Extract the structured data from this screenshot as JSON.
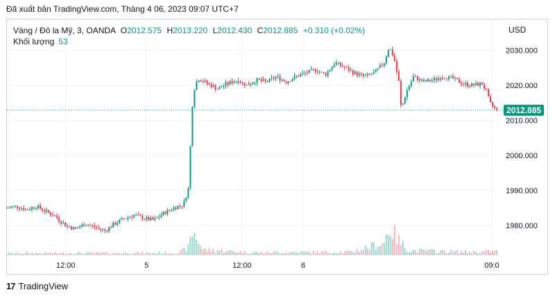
{
  "publish_line": "Đã xuất bản TradingView.com, Tháng 4 06, 2023 09:07 UTC+7",
  "legend": {
    "symbol": "Vàng / Đô la Mỹ, 3, OANDA",
    "o_label": "O",
    "o_value": "2012.575",
    "h_label": "H",
    "h_value": "2013.220",
    "l_label": "L",
    "l_value": "2012.430",
    "c_label": "C",
    "c_value": "2012.885",
    "change": "+0.310 (+0.02%)",
    "volume_label": "Khối lượng",
    "volume_value": "53"
  },
  "currency": "USD",
  "footer": {
    "brand": "TradingView",
    "logo_text": "17"
  },
  "colors": {
    "up": "#089981",
    "down": "#f23645",
    "last_price_bg": "#089981",
    "grid": "#f0f3fa",
    "text": "#131722"
  },
  "chart_data": {
    "type": "candlestick",
    "title": "Vàng / Đô la Mỹ, 3, OANDA",
    "ylabel": "USD",
    "ylim": [
      1972,
      2036
    ],
    "y_ticks": [
      "2030.000",
      "2020.000",
      "2010.000",
      "2000.000",
      "1990.000",
      "1980.000"
    ],
    "y_tick_values": [
      2030,
      2020,
      2010,
      2000,
      1990,
      1980
    ],
    "x_ticks": [
      "12:00",
      "5",
      "12:00",
      "6",
      "09:0"
    ],
    "last_price": "2012.885",
    "last_price_value": 2012.885,
    "price_path": [
      {
        "t": 0,
        "p": 1985.0
      },
      {
        "t": 4,
        "p": 1985.5
      },
      {
        "t": 8,
        "p": 1984.5
      },
      {
        "t": 12,
        "p": 1985.5
      },
      {
        "t": 16,
        "p": 1984.0
      },
      {
        "t": 20,
        "p": 1982.5
      },
      {
        "t": 24,
        "p": 1980.0
      },
      {
        "t": 28,
        "p": 1979.0
      },
      {
        "t": 32,
        "p": 1980.5
      },
      {
        "t": 36,
        "p": 1979.5
      },
      {
        "t": 40,
        "p": 1978.5
      },
      {
        "t": 44,
        "p": 1980.5
      },
      {
        "t": 48,
        "p": 1982.0
      },
      {
        "t": 52,
        "p": 1983.0
      },
      {
        "t": 56,
        "p": 1982.0
      },
      {
        "t": 60,
        "p": 1981.5
      },
      {
        "t": 64,
        "p": 1983.5
      },
      {
        "t": 68,
        "p": 1985.0
      },
      {
        "t": 72,
        "p": 1986.0
      },
      {
        "t": 74,
        "p": 1990.0
      },
      {
        "t": 75,
        "p": 2004.0
      },
      {
        "t": 76,
        "p": 2018.0
      },
      {
        "t": 78,
        "p": 2022.0
      },
      {
        "t": 82,
        "p": 2020.5
      },
      {
        "t": 86,
        "p": 2019.0
      },
      {
        "t": 90,
        "p": 2020.5
      },
      {
        "t": 94,
        "p": 2021.5
      },
      {
        "t": 98,
        "p": 2020.0
      },
      {
        "t": 102,
        "p": 2021.5
      },
      {
        "t": 106,
        "p": 2021.0
      },
      {
        "t": 110,
        "p": 2022.5
      },
      {
        "t": 114,
        "p": 2021.0
      },
      {
        "t": 118,
        "p": 2022.5
      },
      {
        "t": 122,
        "p": 2023.5
      },
      {
        "t": 126,
        "p": 2024.5
      },
      {
        "t": 130,
        "p": 2023.0
      },
      {
        "t": 134,
        "p": 2026.5
      },
      {
        "t": 138,
        "p": 2025.0
      },
      {
        "t": 142,
        "p": 2023.5
      },
      {
        "t": 146,
        "p": 2022.5
      },
      {
        "t": 150,
        "p": 2023.5
      },
      {
        "t": 154,
        "p": 2026.5
      },
      {
        "t": 156,
        "p": 2031.0
      },
      {
        "t": 158,
        "p": 2028.0
      },
      {
        "t": 160,
        "p": 2021.0
      },
      {
        "t": 161,
        "p": 2013.0
      },
      {
        "t": 163,
        "p": 2018.0
      },
      {
        "t": 166,
        "p": 2022.5
      },
      {
        "t": 170,
        "p": 2021.0
      },
      {
        "t": 174,
        "p": 2021.5
      },
      {
        "t": 178,
        "p": 2022.5
      },
      {
        "t": 182,
        "p": 2022.0
      },
      {
        "t": 186,
        "p": 2020.5
      },
      {
        "t": 190,
        "p": 2020.0
      },
      {
        "t": 194,
        "p": 2020.5
      },
      {
        "t": 196,
        "p": 2018.0
      },
      {
        "t": 197,
        "p": 2015.0
      },
      {
        "t": 200,
        "p": 2012.885
      }
    ],
    "volume_path": [
      {
        "t": 0,
        "v": 5
      },
      {
        "t": 70,
        "v": 6
      },
      {
        "t": 74,
        "v": 18
      },
      {
        "t": 76,
        "v": 60
      },
      {
        "t": 80,
        "v": 14
      },
      {
        "t": 100,
        "v": 7
      },
      {
        "t": 140,
        "v": 8
      },
      {
        "t": 154,
        "v": 30
      },
      {
        "t": 156,
        "v": 70
      },
      {
        "t": 160,
        "v": 35
      },
      {
        "t": 164,
        "v": 12
      },
      {
        "t": 190,
        "v": 8
      },
      {
        "t": 200,
        "v": 10
      }
    ]
  }
}
